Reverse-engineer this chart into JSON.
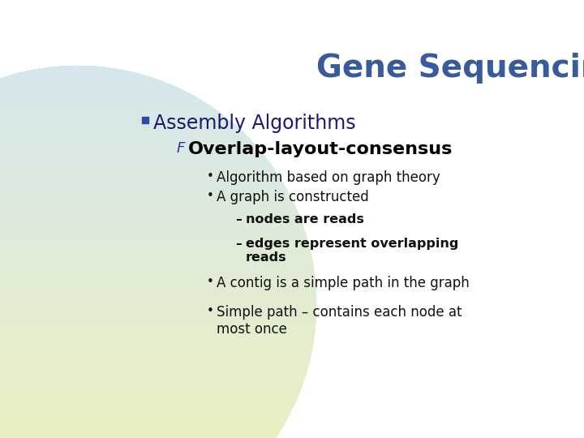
{
  "title": "Gene Sequencing",
  "title_color": "#3a5a9e",
  "title_fontsize": 28,
  "bg_color": "#FFFFFF",
  "bullet1": "Assembly Algorithms",
  "bullet1_color": "#1a1a6e",
  "bullet1_fontsize": 17,
  "sub_bullet": "Overlap-layout-consensus",
  "sub_bullet_color": "#000000",
  "sub_bullet_fontsize": 16,
  "items": [
    "Algorithm based on graph theory",
    "A graph is constructed"
  ],
  "items_color": "#111111",
  "items_fontsize": 12,
  "sub_items": [
    "nodes are reads",
    "edges represent overlapping\nreads"
  ],
  "sub_items_color": "#111111",
  "sub_items_fontsize": 11.5,
  "items2": [
    "A contig is a simple path in the graph",
    "Simple path – contains each node at\nmost once"
  ],
  "items2_color": "#111111",
  "items2_fontsize": 12,
  "arc_color_top": "#c5dff0",
  "arc_color_bottom": "#f0f5d0",
  "square_bullet_color": "#2E4B9E",
  "f_bullet_color": "#3333aa"
}
